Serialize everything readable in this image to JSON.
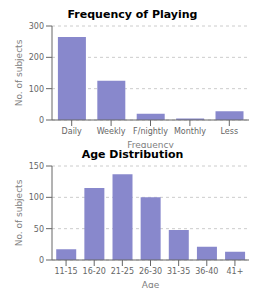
{
  "chart_data": [
    {
      "type": "bar",
      "title": "Frequency of Playing",
      "xlabel": "Frequency",
      "ylabel": "No. of subjects",
      "categories": [
        "Daily",
        "Weekly",
        "F/nightly",
        "Monthly",
        "Less"
      ],
      "values": [
        265,
        125,
        20,
        5,
        28
      ],
      "color": "#8888cc",
      "ylim": [
        0,
        300
      ],
      "yticks": [
        0,
        100,
        200,
        300
      ],
      "grid": true
    },
    {
      "type": "bar",
      "title": "Age Distribution",
      "xlabel": "Age",
      "ylabel": "No. of subjects",
      "categories": [
        "11-15",
        "16-20",
        "21-25",
        "26-30",
        "31-35",
        "36-40",
        "41+"
      ],
      "values": [
        17,
        115,
        137,
        100,
        48,
        21,
        13
      ],
      "color": "#8888cc",
      "ylim": [
        0,
        150
      ],
      "yticks": [
        0,
        50,
        100,
        150
      ],
      "grid": true
    }
  ]
}
